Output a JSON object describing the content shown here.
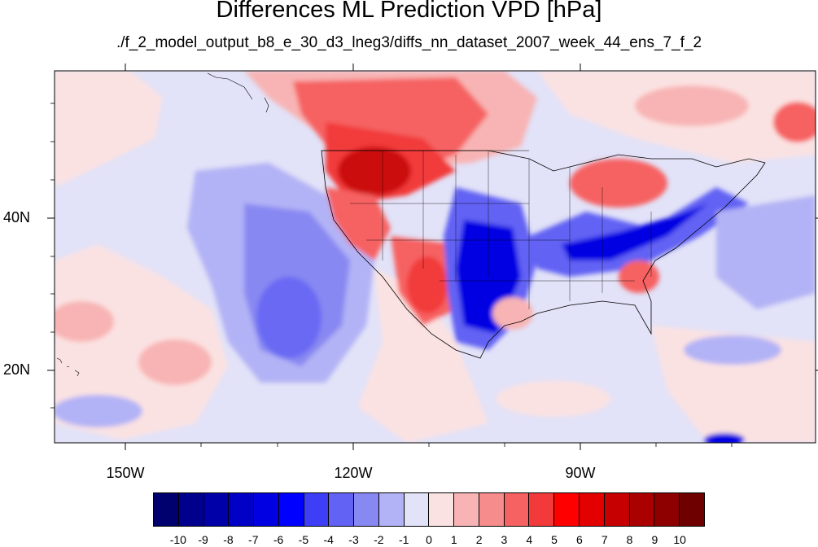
{
  "title": "Differences ML Prediction VPD [hPa]",
  "subtitle": "./f_2_model_output_b8_e_30_d3_lneg3/diffs_nn_dataset_2007_week_44_ens_7_f_2",
  "latitude_labels": [
    "40N",
    "20N"
  ],
  "longitude_labels": [
    "150W",
    "120W",
    "90W"
  ],
  "colorbar": {
    "labels": [
      "-10",
      "-9",
      "-8",
      "-7",
      "-6",
      "-5",
      "-4",
      "-3",
      "-2",
      "-1",
      "0",
      "1",
      "2",
      "3",
      "4",
      "5",
      "6",
      "7",
      "8",
      "9",
      "10"
    ],
    "colors": [
      "#00006e",
      "#00008c",
      "#0000a8",
      "#0000c6",
      "#0000e2",
      "#0000ff",
      "#3e3ef6",
      "#6262f4",
      "#8888f2",
      "#b2b2f6",
      "#e2e2f8",
      "#fbe2e2",
      "#f8b4b4",
      "#f68c8c",
      "#f66262",
      "#f23a3a",
      "#ff0000",
      "#e20000",
      "#c60000",
      "#aa0000",
      "#8e0000",
      "#6e0000"
    ]
  },
  "palette": {
    "pale_blue": "#e2e2f8",
    "light_blue": "#b2b2f6",
    "mid_blue": "#8888f2",
    "blue": "#6262f4",
    "deep_blue": "#0000e2",
    "pale_red": "#fbe2e2",
    "light_red": "#f8b4b4",
    "mid_red": "#f66262",
    "red": "#f23a3a",
    "deep_red": "#c60000"
  }
}
